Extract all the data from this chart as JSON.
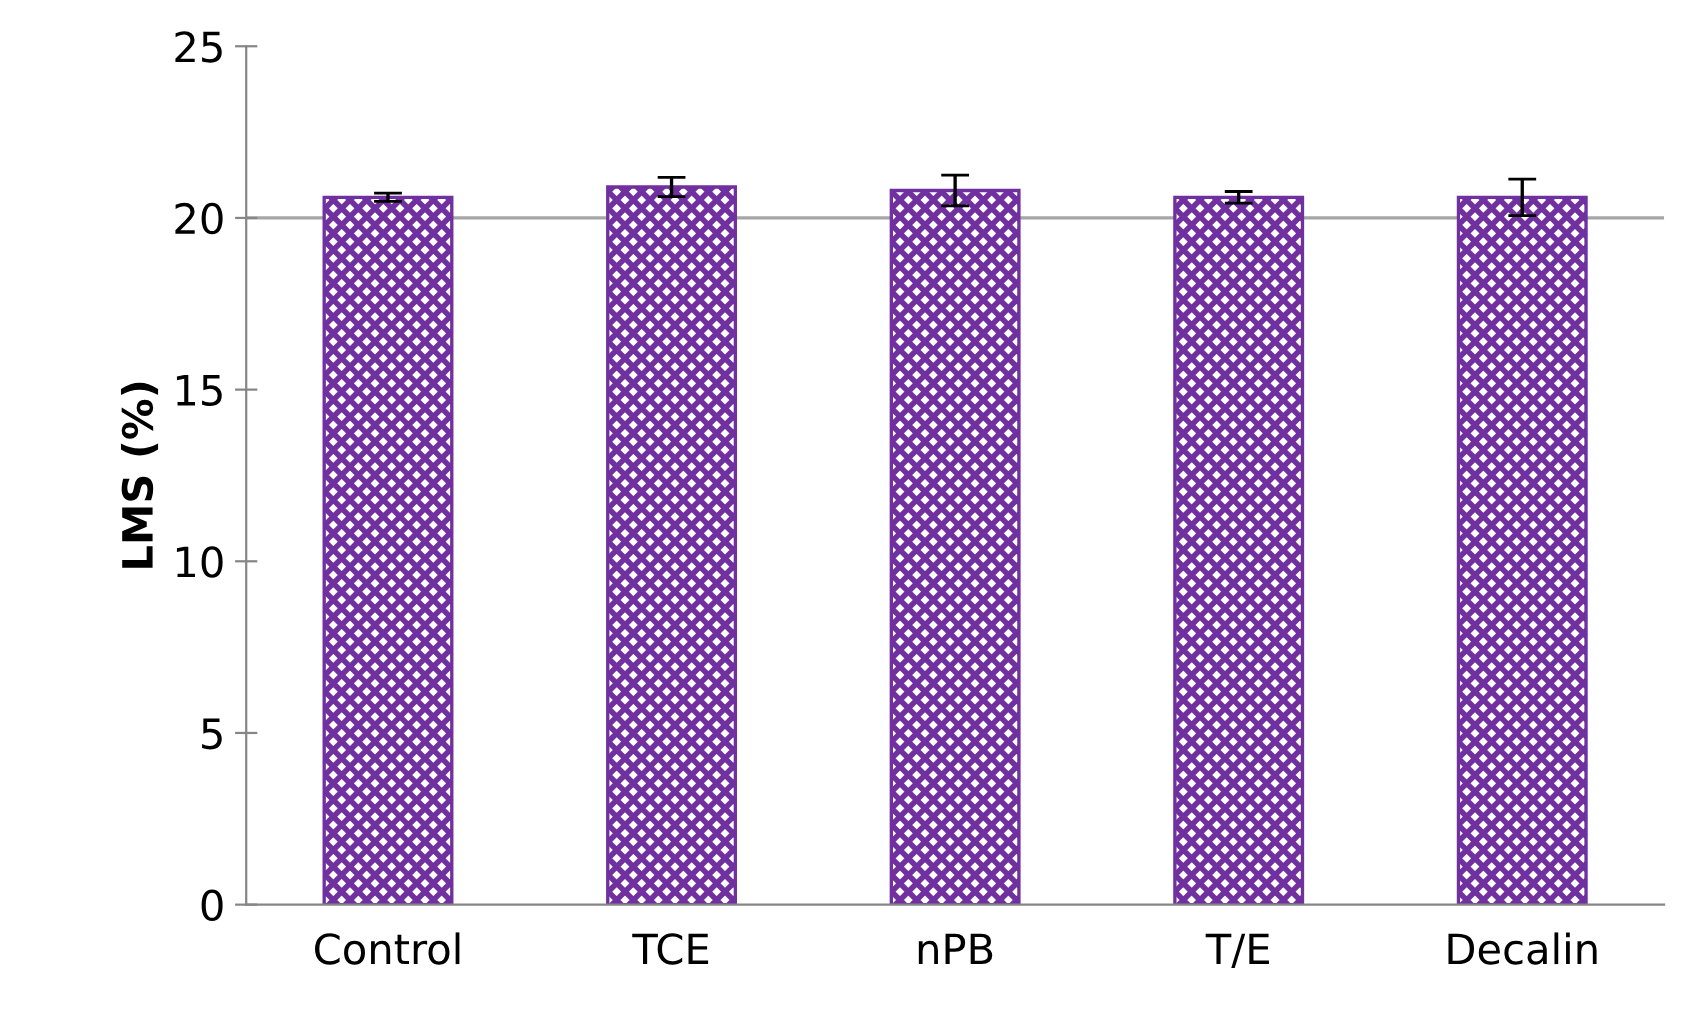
{
  "chart_data": {
    "type": "bar",
    "ylabel": "LMS (%)",
    "categories": [
      "Control",
      "TCE",
      "nPB",
      "T/E",
      "Decalin"
    ],
    "values": [
      20.6,
      20.9,
      20.8,
      20.6,
      20.6
    ],
    "errors": [
      0.12,
      0.28,
      0.45,
      0.17,
      0.53
    ],
    "color": "#7030a0",
    "ylim": [
      0,
      25
    ],
    "yticks": [
      0,
      5,
      10,
      15,
      20,
      25
    ],
    "grid": false,
    "ref_lines": [
      {
        "axis": "y",
        "value": 20,
        "color": "#a6a6a6"
      }
    ]
  }
}
